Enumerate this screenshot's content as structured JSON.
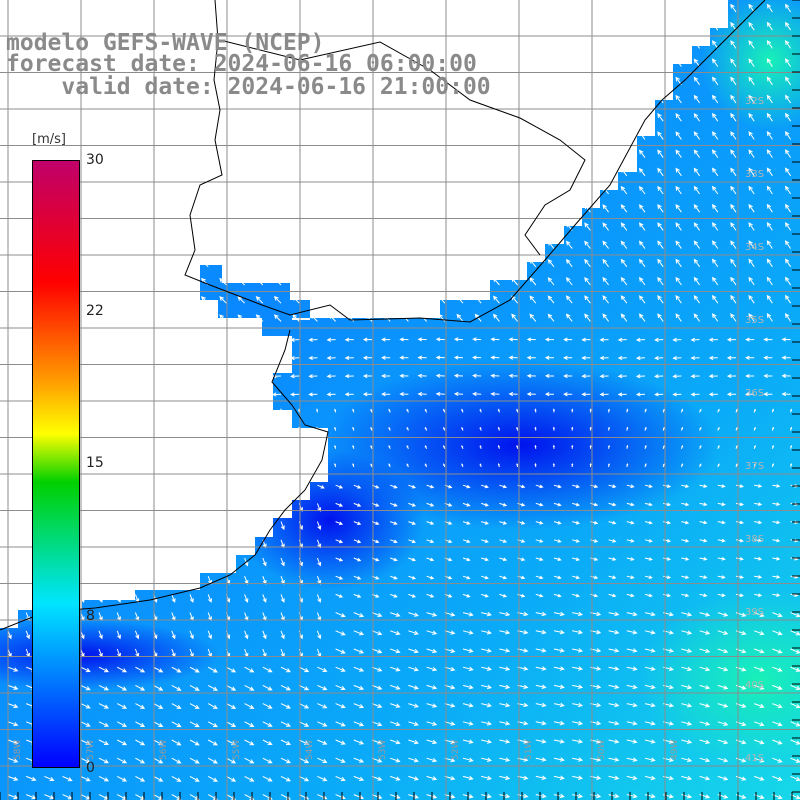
{
  "title": {
    "model": "modelo GEFS-WAVE (NCEP)",
    "forecast": "forecast date: 2024-06-16 06:00:00",
    "valid": "valid date: 2024-06-16 21:00:00"
  },
  "legend": {
    "unit": "[m/s]",
    "ticks": [
      "30",
      "22",
      "15",
      "8",
      "0"
    ],
    "range": [
      0,
      30
    ]
  },
  "map": {
    "lat_labels": [
      "32S",
      "33S",
      "34S",
      "35S",
      "36S",
      "37S",
      "38S",
      "39S",
      "40S",
      "41S"
    ],
    "lon_labels": [
      "58W",
      "57W",
      "56W",
      "55W",
      "54W",
      "53W",
      "52W",
      "51W",
      "50W",
      "49W"
    ],
    "colors": {
      "land": "#ffffff",
      "grid": "#8c8c8c",
      "coast": "#000000",
      "vector": "#ffffff"
    }
  }
}
